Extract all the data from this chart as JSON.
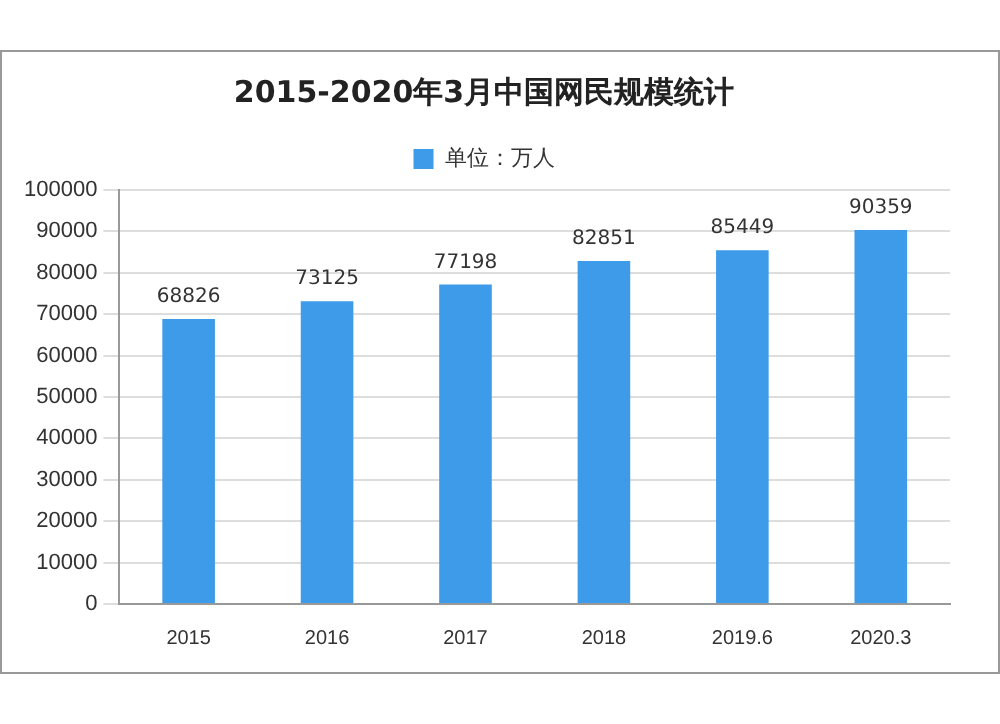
{
  "chart_data": {
    "type": "bar",
    "title": "2015-2020年3月中国网民规模统计",
    "categories": [
      "2015",
      "2016",
      "2017",
      "2018",
      "2019.6",
      "2020.3"
    ],
    "series": [
      {
        "name": "单位：万人",
        "color": "#3d9be9",
        "values": [
          68826,
          73125,
          77198,
          82851,
          85449,
          90359
        ]
      }
    ],
    "ylim": [
      0,
      100000
    ],
    "yticks": [
      0,
      10000,
      20000,
      30000,
      40000,
      50000,
      60000,
      70000,
      80000,
      90000,
      100000
    ],
    "grid": "y",
    "legend": "top",
    "data_labels": true
  }
}
